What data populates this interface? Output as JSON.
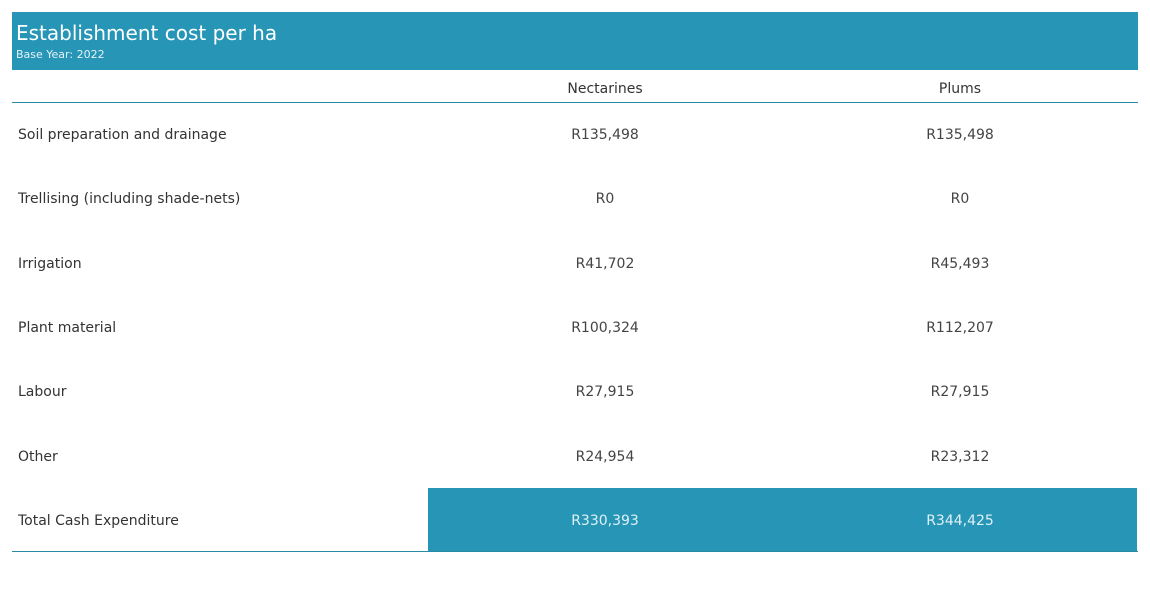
{
  "header": {
    "title": "Establishment cost per ha",
    "subtitle": "Base Year: 2022",
    "accent_color": "#2695b6"
  },
  "columns": [
    "Nectarines",
    "Plums"
  ],
  "rows": [
    {
      "label": "Soil preparation and drainage",
      "values": [
        "R135,498",
        "R135,498"
      ]
    },
    {
      "label": "Trellising (including shade-nets)",
      "values": [
        "R0",
        "R0"
      ]
    },
    {
      "label": "Irrigation",
      "values": [
        "R41,702",
        "R45,493"
      ]
    },
    {
      "label": "Plant material",
      "values": [
        "R100,324",
        "R112,207"
      ]
    },
    {
      "label": "Labour",
      "values": [
        "R27,915",
        "R27,915"
      ]
    },
    {
      "label": "Other",
      "values": [
        "R24,954",
        "R23,312"
      ]
    }
  ],
  "total": {
    "label": "Total Cash Expenditure",
    "values": [
      "R330,393",
      "R344,425"
    ]
  }
}
